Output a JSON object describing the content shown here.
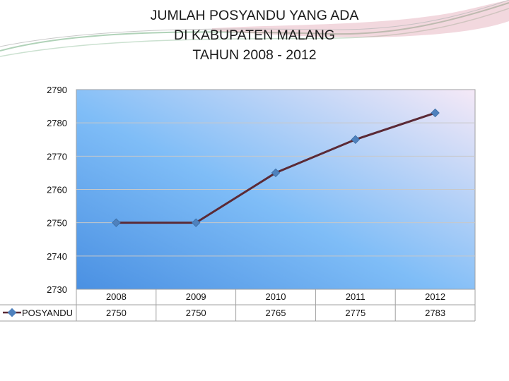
{
  "title_lines": [
    "JUMLAH POSYANDU YANG ADA",
    "DI KABUPATEN MALANG",
    "TAHUN 2008 - 2012"
  ],
  "colors": {
    "line": "#5b2a36",
    "marker": "#4f81bd",
    "plot_left": "#4a90e2",
    "plot_right": "#f3e8f7",
    "grid": "#c8c8c8",
    "axis": "#a0a0a0",
    "swoosh_green": "#8fbf9a",
    "swoosh_pink": "#d98fa0"
  },
  "chart_data": {
    "type": "line",
    "categories": [
      "2008",
      "2009",
      "2010",
      "2011",
      "2012"
    ],
    "series": [
      {
        "name": "POSYANDU",
        "values": [
          2750,
          2750,
          2765,
          2775,
          2783
        ]
      }
    ],
    "yticks": [
      2730,
      2740,
      2750,
      2760,
      2770,
      2780,
      2790
    ],
    "ylim": [
      2730,
      2790
    ],
    "grid": true,
    "legend": "data-table-left",
    "data_table": true
  }
}
